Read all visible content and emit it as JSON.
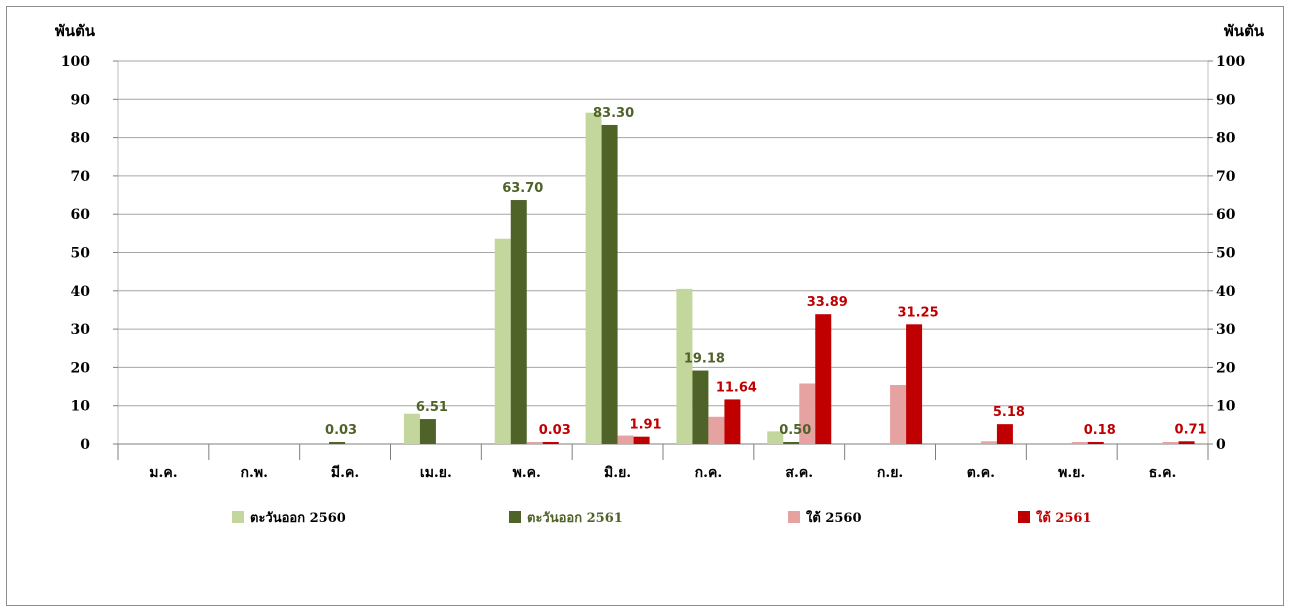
{
  "chart_data": {
    "type": "bar",
    "y_unit_left": "พันตัน",
    "y_unit_right": "พันตัน",
    "ylim": [
      0,
      100
    ],
    "yticks": [
      "0",
      "10",
      "20",
      "30",
      "40",
      "50",
      "60",
      "70",
      "80",
      "90",
      "100"
    ],
    "categories": [
      "ม.ค.",
      "ก.พ.",
      "มี.ค.",
      "เม.ย.",
      "พ.ค.",
      "มิ.ย.",
      "ก.ค.",
      "ส.ค.",
      "ก.ย.",
      "ต.ค.",
      "พ.ย.",
      "ธ.ค."
    ],
    "grid": true,
    "legend_position": "bottom",
    "series": [
      {
        "name": "ตะวันออก 2560",
        "color": "#c3d69b",
        "label_color": "#4f6228",
        "values": [
          0,
          0,
          0,
          7.9,
          53.6,
          86.5,
          40.5,
          3.3,
          0,
          0,
          0,
          0
        ],
        "labels": [
          "",
          "",
          "",
          "",
          "",
          "",
          "",
          "",
          "",
          "",
          "",
          ""
        ]
      },
      {
        "name": "ตะวันออก 2561",
        "color": "#4f6228",
        "label_color": "#4f6228",
        "values": [
          0,
          0,
          0.03,
          6.51,
          63.7,
          83.3,
          19.18,
          0.5,
          0,
          0,
          0,
          0
        ],
        "labels": [
          "",
          "",
          "0.03",
          "6.51",
          "63.70",
          "83.30",
          "19.18",
          "0.50",
          "",
          "",
          "",
          ""
        ]
      },
      {
        "name": "ใต้ 2560",
        "color": "#e6a1a1",
        "label_color": "#c00000",
        "values": [
          0,
          0,
          0,
          0,
          0.3,
          2.2,
          7.1,
          15.8,
          15.4,
          0.7,
          0.2,
          0.4
        ],
        "labels": [
          "",
          "",
          "",
          "",
          "",
          "",
          "",
          "",
          "",
          "",
          "",
          ""
        ]
      },
      {
        "name": "ใต้ 2561",
        "color": "#c00000",
        "label_color": "#c00000",
        "values": [
          0,
          0,
          0,
          0,
          0.03,
          1.91,
          11.64,
          33.89,
          31.25,
          5.18,
          0.18,
          0.71
        ],
        "labels": [
          "",
          "",
          "",
          "",
          "0.03",
          "1.91",
          "11.64",
          "33.89",
          "31.25",
          "5.18",
          "0.18",
          "0.71"
        ]
      }
    ]
  }
}
